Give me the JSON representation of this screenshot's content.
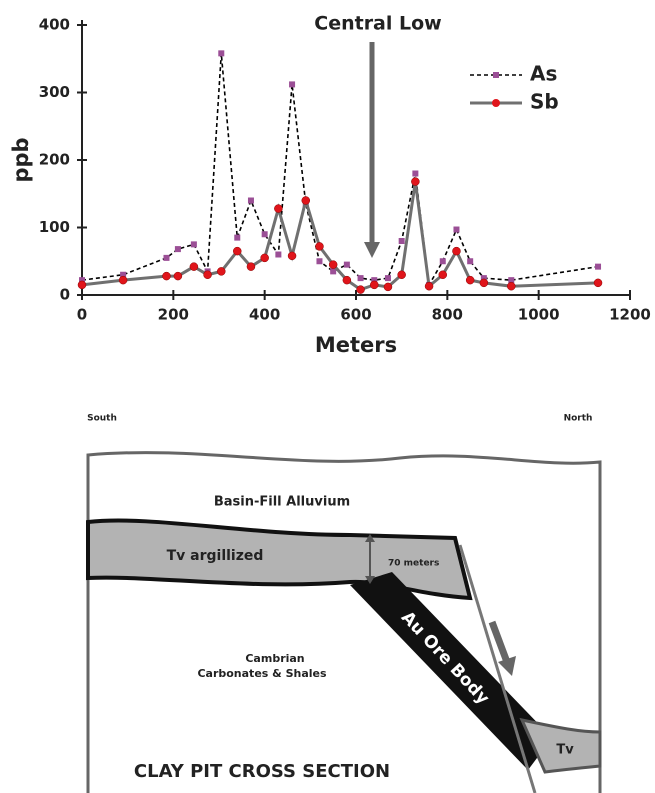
{
  "chart_data": {
    "type": "line",
    "annotation": "Central Low",
    "xlabel": "Meters",
    "ylabel": "ppb",
    "x": [
      0,
      90,
      185,
      210,
      245,
      275,
      305,
      340,
      370,
      400,
      430,
      460,
      490,
      520,
      550,
      580,
      610,
      640,
      670,
      700,
      730,
      760,
      790,
      820,
      850,
      880,
      940,
      1130
    ],
    "series": [
      {
        "name": "As",
        "color": "#9b4f96",
        "line_color": "#000000",
        "dashed": true,
        "marker": "square",
        "values": [
          22,
          30,
          55,
          68,
          75,
          35,
          358,
          85,
          140,
          90,
          60,
          312,
          135,
          50,
          35,
          45,
          25,
          22,
          25,
          80,
          180,
          15,
          50,
          97,
          50,
          25,
          22,
          42
        ]
      },
      {
        "name": "Sb",
        "color": "#e0151b",
        "line_color": "#707070",
        "dashed": false,
        "marker": "circle",
        "values": [
          15,
          22,
          28,
          28,
          42,
          30,
          35,
          65,
          42,
          55,
          128,
          58,
          140,
          72,
          45,
          22,
          8,
          15,
          12,
          30,
          168,
          13,
          30,
          65,
          22,
          18,
          13,
          18
        ]
      }
    ],
    "xlim": [
      0,
      1200
    ],
    "ylim": [
      0,
      400
    ],
    "xticks": [
      0,
      200,
      400,
      600,
      800,
      1000,
      1200
    ],
    "yticks": [
      0,
      100,
      200,
      300,
      400
    ],
    "grid": false,
    "legend": "top-right"
  },
  "diagram": {
    "south": "South",
    "north": "North",
    "alluvium": "Basin-Fill Alluvium",
    "tv_argillized": "Tv argillized",
    "thickness": "70 meters",
    "cambrian": [
      "Cambrian",
      "Carbonates & Shales"
    ],
    "ore_body": "Au Ore Body",
    "tv": "Tv",
    "title": "CLAY PIT CROSS SECTION"
  }
}
